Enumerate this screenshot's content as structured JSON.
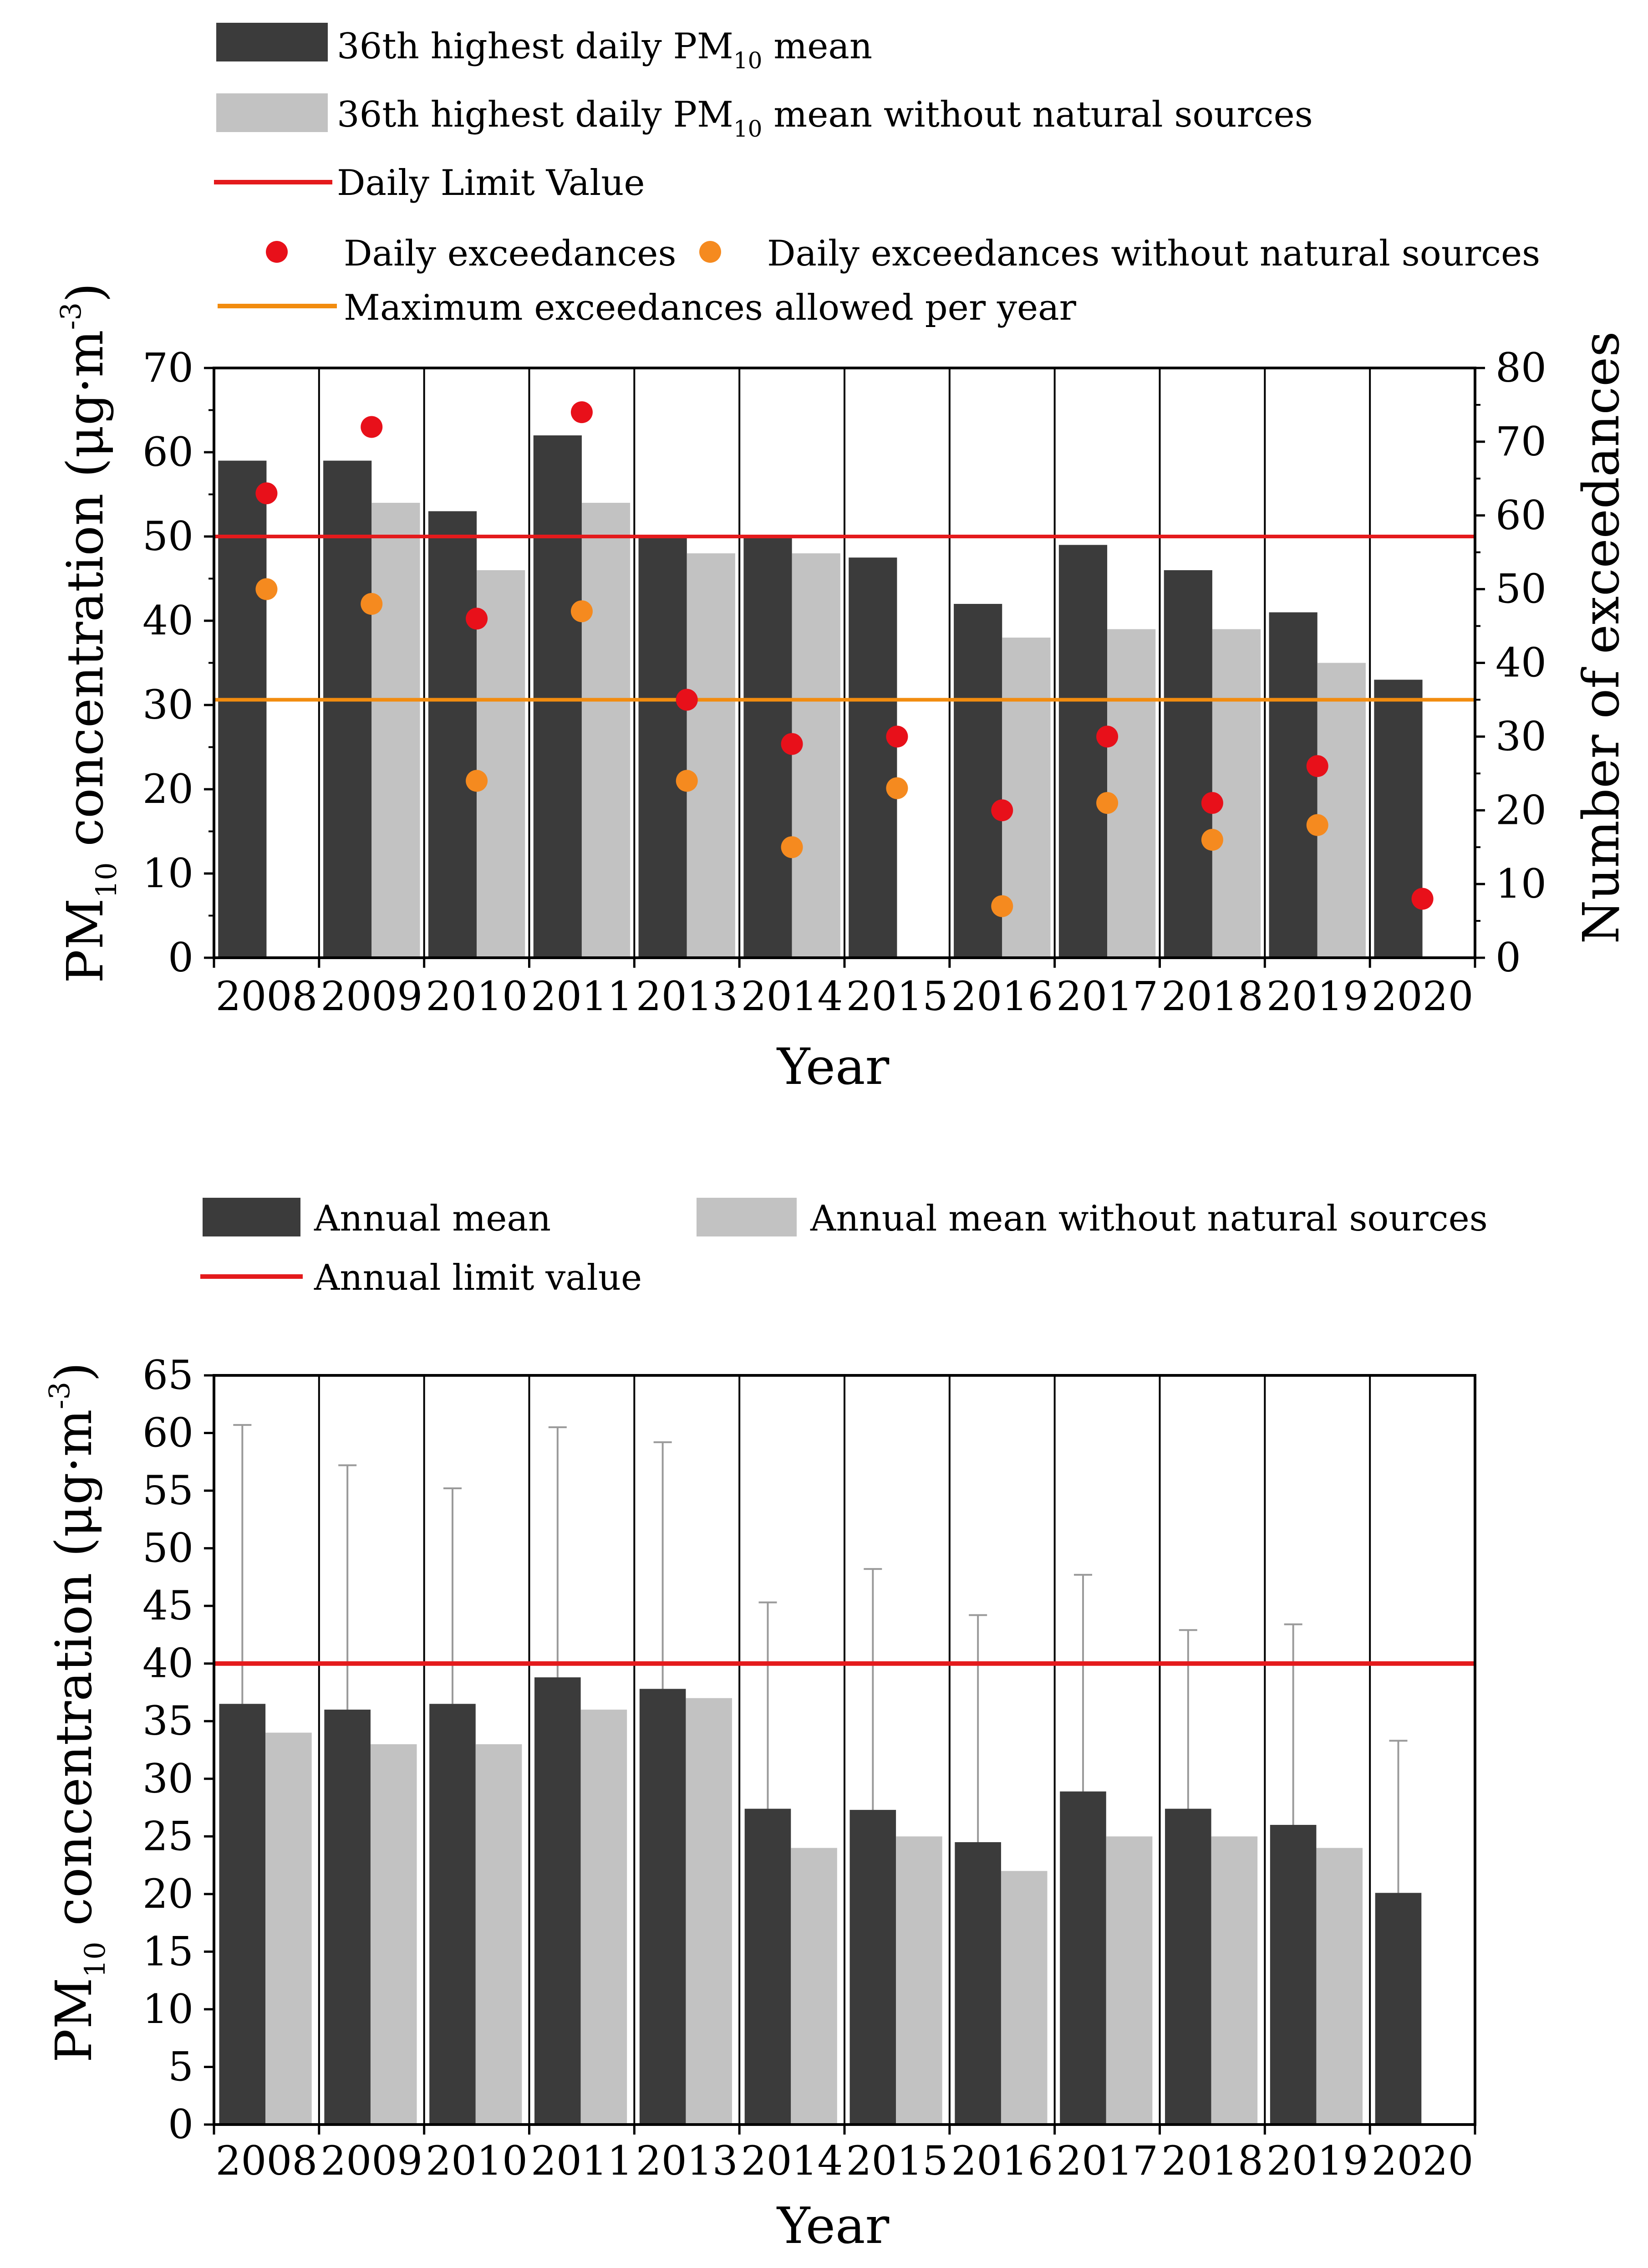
{
  "colors": {
    "dark_bar": "#3b3b3b",
    "light_bar": "#c2c2c2",
    "limit_line": "#e41a1c",
    "max_exceed_line": "#f28c0f",
    "dot_red": "#e8101a",
    "dot_orange": "#f58a1f",
    "errorbar": "#9a9a9a"
  },
  "chart_data": [
    {
      "type": "bar",
      "categories": [
        "2008",
        "2009",
        "2010",
        "2011",
        "2013",
        "2014",
        "2015",
        "2016",
        "2017",
        "2018",
        "2019",
        "2020"
      ],
      "series": [
        {
          "name": "36th highest daily PM10 mean",
          "values": [
            59,
            59,
            53,
            62,
            50,
            50,
            47.5,
            42,
            49,
            46,
            41,
            33
          ]
        },
        {
          "name": "36th highest daily PM10 mean without natural sources",
          "values": [
            null,
            54,
            46,
            54,
            48,
            48,
            null,
            38,
            39,
            39,
            35,
            null
          ]
        }
      ],
      "secondary_series": [
        {
          "name": "Daily exceedances",
          "values": [
            63,
            72,
            46,
            74,
            35,
            29,
            30,
            20,
            30,
            21,
            26,
            8
          ]
        },
        {
          "name": "Daily exceedances without natural sources",
          "values": [
            50,
            48,
            null,
            47,
            null,
            null,
            null,
            7,
            null,
            null,
            null,
            null
          ]
        }
      ],
      "secondary_series_extra": [
        {
          "name": "Daily exceedances without natural sources",
          "values_by_category": [
            50,
            48,
            24,
            47,
            24,
            15,
            23,
            7,
            21,
            16,
            18,
            null
          ]
        }
      ],
      "hlines": {
        "daily_limit_value": 50,
        "max_exceedances_allowed": 35
      },
      "legend": {
        "row1": "36th highest daily PM",
        "row1_sub": "10",
        "row1_tail": " mean",
        "row2": "36th highest daily PM",
        "row2_sub": "10",
        "row2_tail": " mean without natural sources",
        "row3": "Daily Limit Value",
        "row4a": "Daily exceedances",
        "row4b": "Daily exceedances without natural sources",
        "row5": "Maximum exceedances allowed per year"
      },
      "xlabel": "Year",
      "ylabel_main": "PM",
      "ylabel_sub": "10",
      "ylabel_tail": " concentration (μg·m",
      "ylabel_sup": "-3",
      "ylabel_close": ")",
      "y2label": "Number of exceedances",
      "ylim": [
        0,
        70
      ],
      "yticks": [
        "0",
        "10",
        "20",
        "30",
        "40",
        "50",
        "60",
        "70"
      ],
      "y2lim": [
        0,
        80
      ],
      "y2ticks": [
        "0",
        "10",
        "20",
        "30",
        "40",
        "50",
        "60",
        "70",
        "80"
      ]
    },
    {
      "type": "bar",
      "categories": [
        "2008",
        "2009",
        "2010",
        "2011",
        "2013",
        "2014",
        "2015",
        "2016",
        "2017",
        "2018",
        "2019",
        "2020"
      ],
      "series": [
        {
          "name": "Annual mean",
          "values": [
            36.5,
            36,
            36.5,
            38.8,
            37.8,
            27.4,
            27.3,
            24.5,
            28.9,
            27.4,
            26,
            20.1
          ]
        },
        {
          "name": "Annual mean without natural sources",
          "values": [
            34,
            33,
            33,
            36,
            37,
            24,
            25,
            22,
            25,
            25,
            24,
            null
          ]
        }
      ],
      "errorbar_top": [
        60.7,
        57.2,
        55.2,
        60.5,
        59.2,
        45.3,
        48.2,
        44.2,
        47.7,
        42.9,
        43.4,
        33.3
      ],
      "hline": {
        "annual_limit_value": 40
      },
      "legend": {
        "a": "Annual mean",
        "b": "Annual mean without natural sources",
        "c": "Annual limit value"
      },
      "xlabel": "Year",
      "ylabel_main": "PM",
      "ylabel_sub": "10",
      "ylabel_tail": " concentration (μg·m",
      "ylabel_sup": "-3",
      "ylabel_close": ")",
      "ylim": [
        0,
        65
      ],
      "yticks": [
        "0",
        "5",
        "10",
        "15",
        "20",
        "25",
        "30",
        "35",
        "40",
        "45",
        "50",
        "55",
        "60",
        "65"
      ]
    }
  ]
}
